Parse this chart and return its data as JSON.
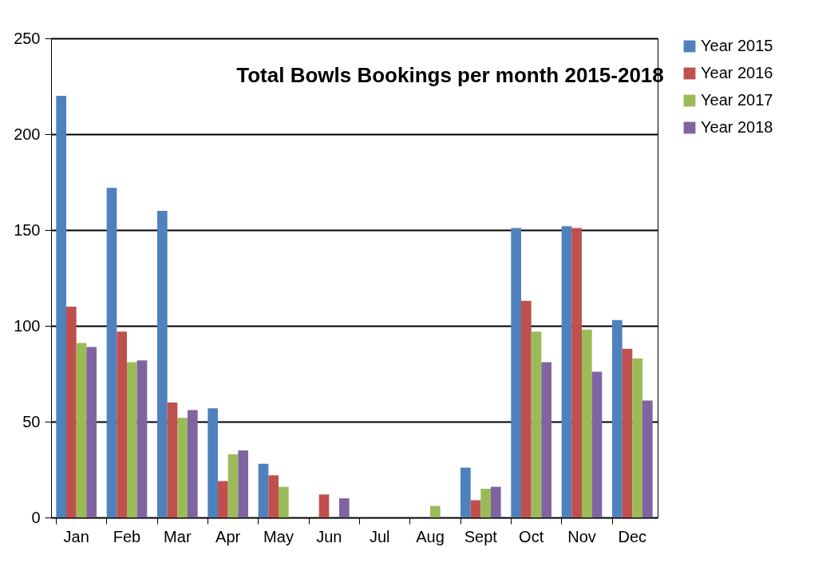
{
  "chart_data": {
    "type": "bar",
    "title": "Total Bowls Bookings per month 2015-2018",
    "categories": [
      "Jan",
      "Feb",
      "Mar",
      "Apr",
      "May",
      "Jun",
      "Jul",
      "Aug",
      "Sept",
      "Oct",
      "Nov",
      "Dec"
    ],
    "series": [
      {
        "name": "Year 2015",
        "color": "#4f81bd",
        "values": [
          220,
          172,
          160,
          57,
          28,
          0,
          0,
          0,
          26,
          151,
          152,
          103
        ]
      },
      {
        "name": "Year 2016",
        "color": "#c0504d",
        "values": [
          110,
          97,
          60,
          19,
          22,
          12,
          0,
          0,
          9,
          113,
          151,
          88
        ]
      },
      {
        "name": "Year 2017",
        "color": "#9bbb59",
        "values": [
          91,
          81,
          52,
          33,
          16,
          0,
          0,
          6,
          15,
          97,
          98,
          83
        ]
      },
      {
        "name": "Year 2018",
        "color": "#8064a2",
        "values": [
          89,
          82,
          56,
          35,
          0,
          10,
          0,
          0,
          16,
          81,
          76,
          61
        ]
      }
    ],
    "ylim": [
      0,
      250
    ],
    "yticks": [
      0,
      50,
      100,
      150,
      200,
      250
    ],
    "grid": "y",
    "legend": "right"
  }
}
